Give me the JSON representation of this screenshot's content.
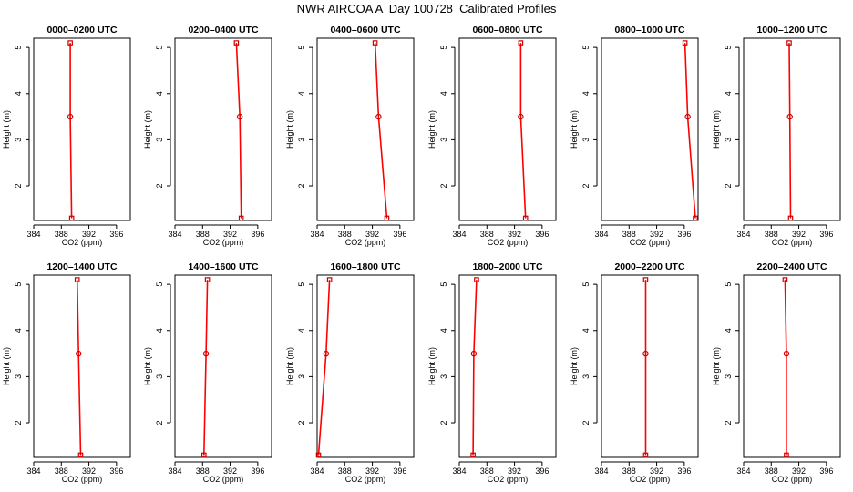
{
  "figure": {
    "title": "NWR AIRCOA A  Day 100728  Calibrated Profiles"
  },
  "style": {
    "line_color": "#ff0000",
    "marker_color": "#cc0000",
    "axis_color": "#000000"
  },
  "chart_data": [
    {
      "type": "line",
      "title": "0000–0200 UTC",
      "xlabel": "CO2 (ppm)",
      "ylabel": "Height (m)",
      "xlim": [
        384,
        398
      ],
      "ylim": [
        1.25,
        5.2
      ],
      "xticks": [
        384,
        388,
        392,
        396
      ],
      "yticks": [
        2,
        3,
        4,
        5
      ],
      "series": [
        {
          "x": [
            389.3,
            389.3,
            389.5
          ],
          "y": [
            5.1,
            3.5,
            1.3
          ]
        }
      ]
    },
    {
      "type": "line",
      "title": "0200–0400 UTC",
      "xlabel": "CO2 (ppm)",
      "ylabel": "Height (m)",
      "xlim": [
        384,
        398
      ],
      "ylim": [
        1.25,
        5.2
      ],
      "xticks": [
        384,
        388,
        392,
        396
      ],
      "yticks": [
        2,
        3,
        4,
        5
      ],
      "series": [
        {
          "x": [
            392.9,
            393.4,
            393.6
          ],
          "y": [
            5.1,
            3.5,
            1.3
          ]
        }
      ]
    },
    {
      "type": "line",
      "title": "0400–0600 UTC",
      "xlabel": "CO2 (ppm)",
      "ylabel": "Height (m)",
      "xlim": [
        384,
        398
      ],
      "ylim": [
        1.25,
        5.2
      ],
      "xticks": [
        384,
        388,
        392,
        396
      ],
      "yticks": [
        2,
        3,
        4,
        5
      ],
      "series": [
        {
          "x": [
            392.4,
            392.9,
            394.1
          ],
          "y": [
            5.1,
            3.5,
            1.3
          ]
        }
      ]
    },
    {
      "type": "line",
      "title": "0600–0800 UTC",
      "xlabel": "CO2 (ppm)",
      "ylabel": "Height (m)",
      "xlim": [
        384,
        398
      ],
      "ylim": [
        1.25,
        5.2
      ],
      "xticks": [
        384,
        388,
        392,
        396
      ],
      "yticks": [
        2,
        3,
        4,
        5
      ],
      "series": [
        {
          "x": [
            392.9,
            392.9,
            393.6
          ],
          "y": [
            5.1,
            3.5,
            1.3
          ]
        }
      ]
    },
    {
      "type": "line",
      "title": "0800–1000 UTC",
      "xlabel": "CO2 (ppm)",
      "ylabel": "Height (m)",
      "xlim": [
        384,
        398
      ],
      "ylim": [
        1.25,
        5.2
      ],
      "xticks": [
        384,
        388,
        392,
        396
      ],
      "yticks": [
        2,
        3,
        4,
        5
      ],
      "series": [
        {
          "x": [
            396.1,
            396.5,
            397.6
          ],
          "y": [
            5.1,
            3.5,
            1.3
          ]
        }
      ]
    },
    {
      "type": "line",
      "title": "1000–1200 UTC",
      "xlabel": "CO2 (ppm)",
      "ylabel": "Height (m)",
      "xlim": [
        384,
        398
      ],
      "ylim": [
        1.25,
        5.2
      ],
      "xticks": [
        384,
        388,
        392,
        396
      ],
      "yticks": [
        2,
        3,
        4,
        5
      ],
      "series": [
        {
          "x": [
            390.6,
            390.7,
            390.8
          ],
          "y": [
            5.1,
            3.5,
            1.3
          ]
        }
      ]
    },
    {
      "type": "line",
      "title": "1200–1400 UTC",
      "xlabel": "CO2 (ppm)",
      "ylabel": "Height (m)",
      "xlim": [
        384,
        398
      ],
      "ylim": [
        1.25,
        5.2
      ],
      "xticks": [
        384,
        388,
        392,
        396
      ],
      "yticks": [
        2,
        3,
        4,
        5
      ],
      "series": [
        {
          "x": [
            390.3,
            390.5,
            390.8
          ],
          "y": [
            5.1,
            3.5,
            1.3
          ]
        }
      ]
    },
    {
      "type": "line",
      "title": "1400–1600 UTC",
      "xlabel": "CO2 (ppm)",
      "ylabel": "Height (m)",
      "xlim": [
        384,
        398
      ],
      "ylim": [
        1.25,
        5.2
      ],
      "xticks": [
        384,
        388,
        392,
        396
      ],
      "yticks": [
        2,
        3,
        4,
        5
      ],
      "series": [
        {
          "x": [
            388.7,
            388.5,
            388.2
          ],
          "y": [
            5.1,
            3.5,
            1.3
          ]
        }
      ]
    },
    {
      "type": "line",
      "title": "1600–1800 UTC",
      "xlabel": "CO2 (ppm)",
      "ylabel": "Height (m)",
      "xlim": [
        384,
        398
      ],
      "ylim": [
        1.25,
        5.2
      ],
      "xticks": [
        384,
        388,
        392,
        396
      ],
      "yticks": [
        2,
        3,
        4,
        5
      ],
      "series": [
        {
          "x": [
            385.8,
            385.3,
            384.2
          ],
          "y": [
            5.1,
            3.5,
            1.3
          ]
        }
      ]
    },
    {
      "type": "line",
      "title": "1800–2000 UTC",
      "xlabel": "CO2 (ppm)",
      "ylabel": "Height (m)",
      "xlim": [
        384,
        398
      ],
      "ylim": [
        1.25,
        5.2
      ],
      "xticks": [
        384,
        388,
        392,
        396
      ],
      "yticks": [
        2,
        3,
        4,
        5
      ],
      "series": [
        {
          "x": [
            386.5,
            386.1,
            386.0
          ],
          "y": [
            5.1,
            3.5,
            1.3
          ]
        }
      ]
    },
    {
      "type": "line",
      "title": "2000–2200 UTC",
      "xlabel": "CO2 (ppm)",
      "ylabel": "Height (m)",
      "xlim": [
        384,
        398
      ],
      "ylim": [
        1.25,
        5.2
      ],
      "xticks": [
        384,
        388,
        392,
        396
      ],
      "yticks": [
        2,
        3,
        4,
        5
      ],
      "series": [
        {
          "x": [
            390.4,
            390.4,
            390.4
          ],
          "y": [
            5.1,
            3.5,
            1.3
          ]
        }
      ]
    },
    {
      "type": "line",
      "title": "2200–2400 UTC",
      "xlabel": "CO2 (ppm)",
      "ylabel": "Height (m)",
      "xlim": [
        384,
        398
      ],
      "ylim": [
        1.25,
        5.2
      ],
      "xticks": [
        384,
        388,
        392,
        396
      ],
      "yticks": [
        2,
        3,
        4,
        5
      ],
      "series": [
        {
          "x": [
            390.0,
            390.2,
            390.2
          ],
          "y": [
            5.1,
            3.5,
            1.3
          ]
        }
      ]
    }
  ]
}
